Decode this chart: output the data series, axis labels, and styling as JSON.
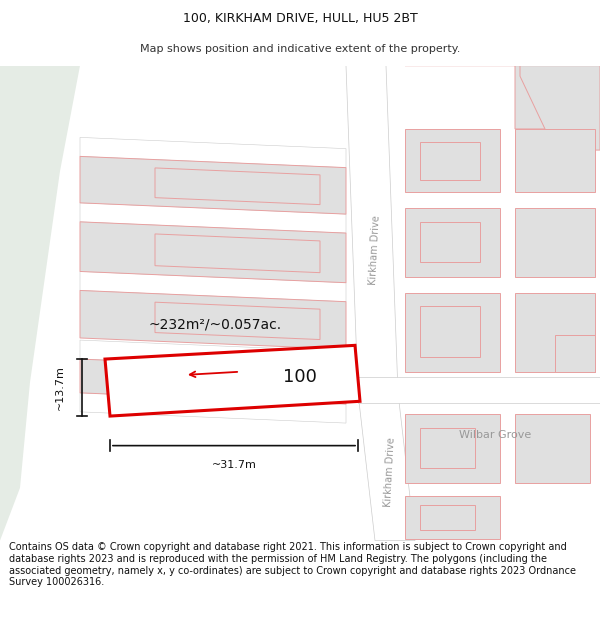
{
  "title_line1": "100, KIRKHAM DRIVE, HULL, HU5 2BT",
  "title_line2": "Map shows position and indicative extent of the property.",
  "footer_text": "Contains OS data © Crown copyright and database right 2021. This information is subject to Crown copyright and database rights 2023 and is reproduced with the permission of HM Land Registry. The polygons (including the associated geometry, namely x, y co-ordinates) are subject to Crown copyright and database rights 2023 Ordnance Survey 100026316.",
  "map_bg": "#f5f5f3",
  "left_bg": "#e8eee8",
  "road_fill": "#ffffff",
  "road_edge": "#cccccc",
  "bld_fill": "#e0e0e0",
  "bld_edge": "#e8a0a0",
  "highlight": "#dd0000",
  "dim_color": "#111111",
  "label_color": "#999999",
  "title_fs": 9,
  "sub_fs": 8,
  "footer_fs": 7,
  "area_fs": 10,
  "dim_fs": 8,
  "num_fs": 13,
  "road_fs": 7,
  "area_label": "~232m²/~0.057ac.",
  "width_label": "~31.7m",
  "height_label": "~13.7m",
  "number_label": "100"
}
